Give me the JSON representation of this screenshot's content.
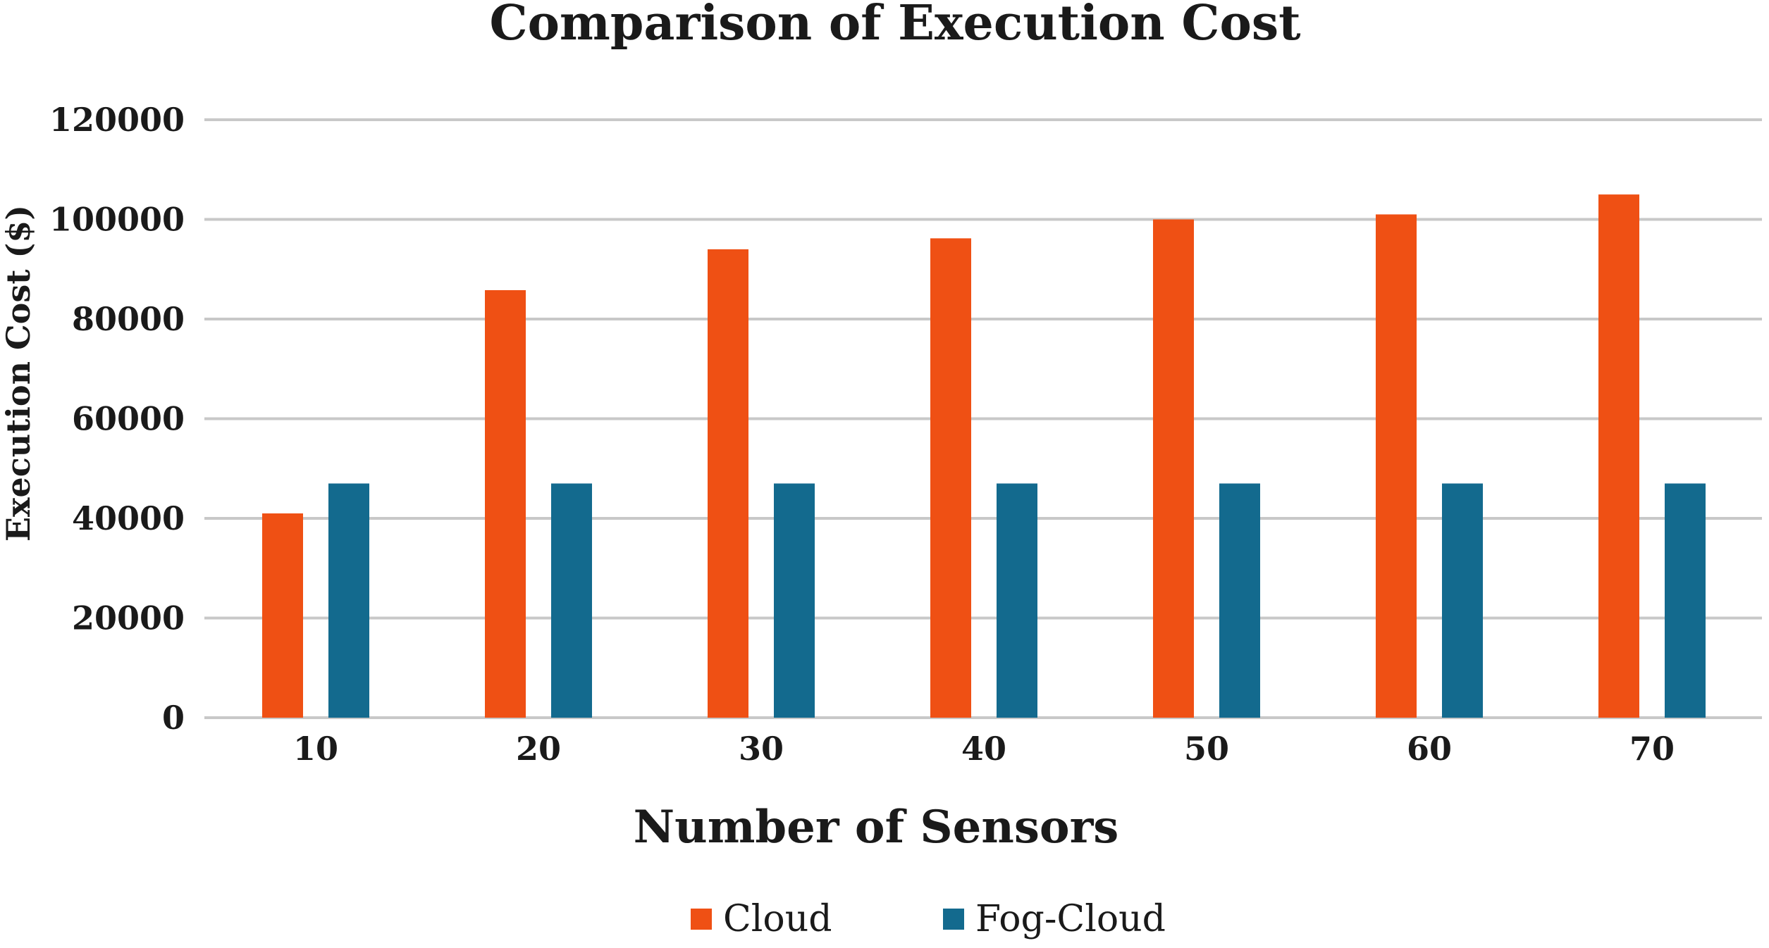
{
  "chart_data": {
    "type": "bar",
    "title": "Comparison of Execution Cost",
    "xlabel": "Number of Sensors",
    "ylabel": "Execution Cost ($)",
    "categories": [
      "10",
      "20",
      "30",
      "40",
      "50",
      "60",
      "70"
    ],
    "series": [
      {
        "name": "Cloud",
        "color": "#EF5014",
        "values": [
          41000,
          85800,
          94000,
          96200,
          100000,
          101000,
          105000
        ]
      },
      {
        "name": "Fog-Cloud",
        "color": "#136A8E",
        "values": [
          47000,
          47000,
          47000,
          47000,
          47000,
          47000,
          47000
        ]
      }
    ],
    "ylim": [
      0,
      120000
    ],
    "yticks": [
      "0",
      "20000",
      "40000",
      "60000",
      "80000",
      "100000",
      "120000"
    ],
    "grid": true,
    "legend_position": "bottom-center"
  }
}
